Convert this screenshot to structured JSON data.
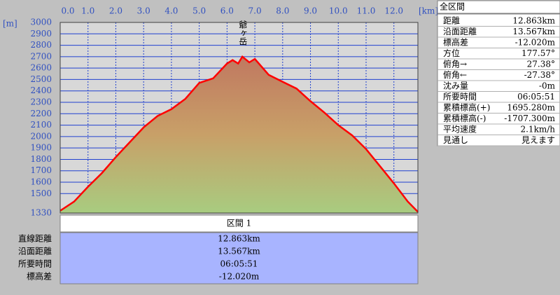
{
  "chart_data": {
    "type": "area",
    "xlabel": "[km]",
    "ylabel": "[m]",
    "annotation": "爺ヶ岳",
    "x": [
      0,
      0.5,
      1.0,
      1.5,
      2.0,
      2.5,
      3.0,
      3.5,
      4.0,
      4.5,
      5.0,
      5.5,
      6.0,
      6.2,
      6.4,
      6.55,
      6.8,
      7.0,
      7.5,
      8.0,
      8.5,
      9.0,
      9.5,
      10.0,
      10.5,
      11.0,
      11.5,
      12.0,
      12.5,
      12.863
    ],
    "values": [
      1350,
      1430,
      1560,
      1680,
      1820,
      1950,
      2080,
      2180,
      2240,
      2330,
      2470,
      2510,
      2640,
      2670,
      2640,
      2700,
      2650,
      2680,
      2540,
      2480,
      2420,
      2310,
      2210,
      2100,
      2010,
      1890,
      1740,
      1590,
      1430,
      1340
    ],
    "color": "#ff0000",
    "xlim": [
      0,
      12.863
    ],
    "xticks": [
      {
        "value": 0,
        "label": "0.0"
      },
      {
        "value": 1,
        "label": "1.0"
      },
      {
        "value": 2,
        "label": "2.0"
      },
      {
        "value": 3,
        "label": "3.0"
      },
      {
        "value": 4,
        "label": "4.0"
      },
      {
        "value": 5,
        "label": "5.0"
      },
      {
        "value": 6,
        "label": "6.0"
      },
      {
        "value": 7,
        "label": "7.0"
      },
      {
        "value": 8,
        "label": "8.0"
      },
      {
        "value": 9,
        "label": "9.0"
      },
      {
        "value": 10,
        "label": "10.0"
      },
      {
        "value": 11,
        "label": "11.0"
      },
      {
        "value": 12,
        "label": "12.0"
      }
    ],
    "ylim": [
      1330,
      3000
    ],
    "yticks": [
      1330,
      1500,
      1600,
      1700,
      1800,
      1900,
      2000,
      2100,
      2200,
      2300,
      2400,
      2500,
      2600,
      2700,
      2800,
      2900,
      3000
    ],
    "grid": true
  },
  "section_table": {
    "header": "区間 1",
    "rows": [
      [
        "直線距離",
        "12.863km"
      ],
      [
        "沿面距離",
        "13.567km"
      ],
      [
        "所要時間",
        "06:05:51"
      ],
      [
        "標高差",
        "-12.020m"
      ]
    ]
  },
  "summary": {
    "title": "全区間",
    "rows": [
      [
        "距離",
        "12.863km"
      ],
      [
        "沿面距離",
        "13.567km"
      ],
      [
        "標高差",
        "-12.020m"
      ],
      [
        "方位",
        "177.57°"
      ],
      [
        "俯角→",
        "27.38°"
      ],
      [
        "俯角←",
        "-27.38°"
      ],
      [
        "沈み量",
        "-0m"
      ],
      [
        "所要時間",
        "06:05:51"
      ],
      [
        "累積標高(+)",
        "1695.280m"
      ],
      [
        "累積標高(-)",
        "-1707.300m"
      ],
      [
        "平均速度",
        "2.1km/h"
      ],
      [
        "見通し",
        "見えます"
      ]
    ]
  }
}
